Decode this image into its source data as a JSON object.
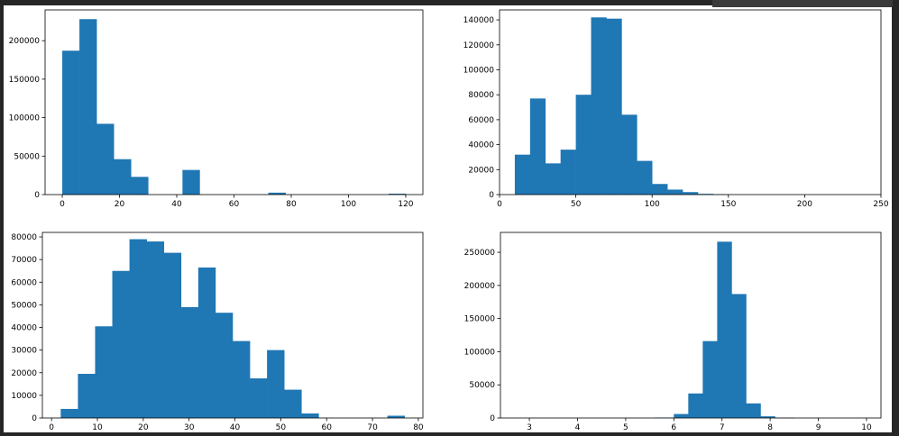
{
  "chart_data": [
    {
      "type": "bar",
      "title": "",
      "xlabel": "",
      "ylabel": "",
      "xlim": [
        -6,
        126
      ],
      "ylim": [
        0,
        240000
      ],
      "xticks": [
        0,
        20,
        40,
        60,
        80,
        100,
        120
      ],
      "yticks": [
        0,
        50000,
        100000,
        150000,
        200000
      ],
      "bin_edges": [
        0,
        6,
        12,
        18,
        24,
        30,
        36,
        42,
        48,
        54,
        60,
        66,
        72,
        78,
        84,
        90,
        96,
        102,
        108,
        114,
        120
      ],
      "values": [
        187000,
        228000,
        92000,
        46000,
        23000,
        0,
        0,
        32000,
        0,
        0,
        0,
        0,
        2500,
        0,
        0,
        0,
        0,
        0,
        0,
        1200
      ],
      "color": "#1f77b4"
    },
    {
      "type": "bar",
      "title": "",
      "xlabel": "",
      "ylabel": "",
      "xlim": [
        0,
        250
      ],
      "ylim": [
        0,
        148000
      ],
      "xticks": [
        0,
        50,
        100,
        150,
        200,
        250
      ],
      "yticks": [
        0,
        20000,
        40000,
        60000,
        80000,
        100000,
        120000,
        140000
      ],
      "bin_edges": [
        10,
        20,
        30,
        40,
        50,
        60,
        70,
        80,
        90,
        100,
        110,
        120,
        130,
        140,
        150
      ],
      "values": [
        32000,
        77000,
        25000,
        36000,
        80000,
        142000,
        141000,
        64000,
        27000,
        8500,
        4000,
        2000,
        600,
        200
      ],
      "color": "#1f77b4"
    },
    {
      "type": "bar",
      "title": "",
      "xlabel": "",
      "ylabel": "",
      "xlim": [
        -2,
        81
      ],
      "ylim": [
        0,
        82000
      ],
      "xticks": [
        0,
        10,
        20,
        30,
        40,
        50,
        60,
        70,
        80
      ],
      "yticks": [
        0,
        10000,
        20000,
        30000,
        40000,
        50000,
        60000,
        70000,
        80000
      ],
      "bin_edges": [
        2,
        5.75,
        9.5,
        13.25,
        17,
        20.75,
        24.5,
        28.25,
        32,
        35.75,
        39.5,
        43.25,
        47,
        50.75,
        54.5,
        58.25,
        62,
        65.75,
        69.5,
        73.25,
        77
      ],
      "values": [
        4000,
        19500,
        40500,
        65000,
        79000,
        78000,
        73000,
        49000,
        66500,
        46500,
        34000,
        17500,
        30000,
        12500,
        2000,
        0,
        0,
        0,
        0,
        1000
      ],
      "color": "#1f77b4"
    },
    {
      "type": "bar",
      "title": "",
      "xlabel": "",
      "ylabel": "",
      "xlim": [
        2.4,
        10.3
      ],
      "ylim": [
        0,
        280000
      ],
      "xticks": [
        3,
        4,
        5,
        6,
        7,
        8,
        9,
        10
      ],
      "yticks": [
        0,
        50000,
        100000,
        150000,
        200000,
        250000
      ],
      "bin_edges": [
        5.6,
        6.0,
        6.3,
        6.6,
        6.9,
        7.2,
        7.5,
        7.8,
        8.1,
        8.5
      ],
      "values": [
        600,
        6000,
        37000,
        116000,
        266000,
        187000,
        22000,
        2500,
        300
      ],
      "color": "#1f77b4"
    }
  ]
}
